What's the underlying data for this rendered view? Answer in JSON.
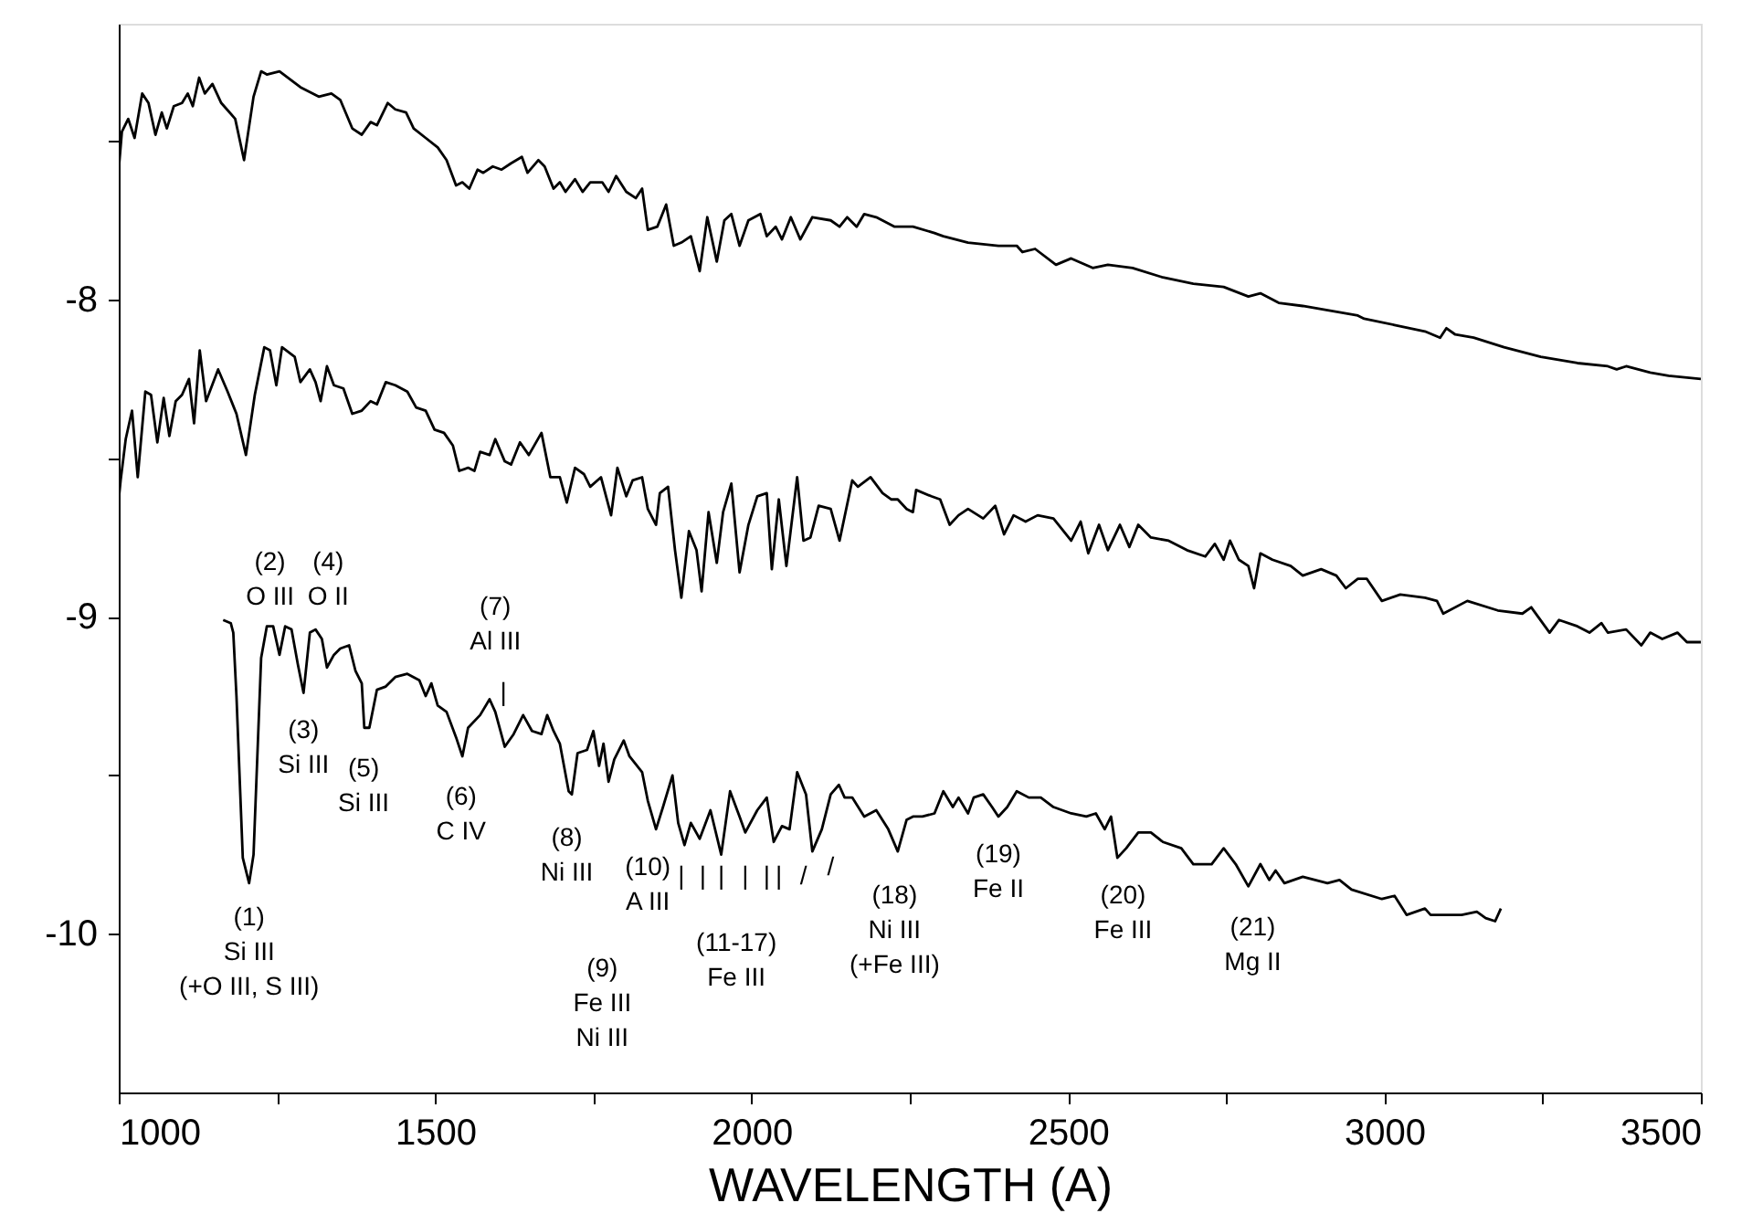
{
  "chart_data": {
    "type": "line",
    "xlabel": "WAVELENGTH (A)",
    "xlim": [
      1000,
      3500
    ],
    "ylim": [
      -10.5,
      -7.13
    ],
    "xticks": [
      1000,
      {
        "value": 1250,
        "label": null
      },
      1500,
      {
        "value": 1750,
        "label": null
      },
      2000,
      {
        "value": 2250,
        "label": null
      },
      2500,
      {
        "value": 2750,
        "label": null
      },
      3000,
      {
        "value": 3250,
        "label": null
      },
      3500
    ],
    "yticks": [
      {
        "value": -7.5,
        "label": null
      },
      -8,
      {
        "value": -8.5,
        "label": null
      },
      -9,
      {
        "value": -9.5,
        "label": null
      },
      -10
    ],
    "grid": false,
    "marker": "none",
    "line_style": "solid",
    "series": [
      {
        "color": "#000000",
        "x": [
          1000,
          1005,
          1015,
          1025,
          1037,
          1047,
          1058,
          1068,
          1076,
          1087,
          1100,
          1109,
          1117,
          1127,
          1136,
          1148,
          1162,
          1184,
          1198,
          1213,
          1225,
          1234,
          1254,
          1287,
          1316,
          1336,
          1350,
          1369,
          1384,
          1398,
          1408,
          1425,
          1437,
          1454,
          1466,
          1485,
          1504,
          1518,
          1533,
          1543,
          1554,
          1567,
          1576,
          1591,
          1605,
          1620,
          1637,
          1646,
          1663,
          1673,
          1687,
          1697,
          1706,
          1721,
          1733,
          1745,
          1764,
          1774,
          1786,
          1802,
          1817,
          1827,
          1836,
          1851,
          1865,
          1877,
          1889,
          1904,
          1918,
          1930,
          1945,
          1957,
          1968,
          1981,
          1995,
          2014,
          2024,
          2038,
          2048,
          2062,
          2077,
          2096,
          2125,
          2139,
          2151,
          2166,
          2178,
          2197,
          2226,
          2255,
          2289,
          2303,
          2342,
          2390,
          2419,
          2428,
          2448,
          2481,
          2505,
          2539,
          2563,
          2602,
          2650,
          2698,
          2746,
          2785,
          2804,
          2833,
          2871,
          2929,
          2958,
          2968,
          3016,
          3064,
          3088,
          3098,
          3112,
          3141,
          3189,
          3247,
          3305,
          3353,
          3367,
          3382,
          3420,
          3449,
          3500
        ],
        "values": [
          -7.59,
          -7.47,
          -7.43,
          -7.49,
          -7.35,
          -7.38,
          -7.48,
          -7.41,
          -7.46,
          -7.39,
          -7.38,
          -7.35,
          -7.39,
          -7.3,
          -7.35,
          -7.32,
          -7.38,
          -7.43,
          -7.56,
          -7.36,
          -7.28,
          -7.29,
          -7.28,
          -7.33,
          -7.36,
          -7.35,
          -7.37,
          -7.46,
          -7.48,
          -7.44,
          -7.45,
          -7.38,
          -7.4,
          -7.41,
          -7.46,
          -7.49,
          -7.52,
          -7.56,
          -7.64,
          -7.63,
          -7.65,
          -7.59,
          -7.6,
          -7.58,
          -7.59,
          -7.57,
          -7.55,
          -7.6,
          -7.56,
          -7.58,
          -7.65,
          -7.63,
          -7.66,
          -7.62,
          -7.66,
          -7.63,
          -7.63,
          -7.66,
          -7.61,
          -7.66,
          -7.68,
          -7.65,
          -7.78,
          -7.77,
          -7.7,
          -7.83,
          -7.82,
          -7.8,
          -7.91,
          -7.74,
          -7.88,
          -7.75,
          -7.73,
          -7.83,
          -7.75,
          -7.73,
          -7.8,
          -7.77,
          -7.81,
          -7.74,
          -7.81,
          -7.74,
          -7.75,
          -7.77,
          -7.74,
          -7.77,
          -7.73,
          -7.74,
          -7.77,
          -7.77,
          -7.79,
          -7.8,
          -7.82,
          -7.83,
          -7.83,
          -7.85,
          -7.84,
          -7.89,
          -7.87,
          -7.9,
          -7.89,
          -7.9,
          -7.93,
          -7.95,
          -7.96,
          -7.99,
          -7.98,
          -8.01,
          -8.02,
          -8.04,
          -8.05,
          -8.06,
          -8.08,
          -8.1,
          -8.12,
          -8.09,
          -8.11,
          -8.12,
          -8.15,
          -8.18,
          -8.2,
          -8.21,
          -8.22,
          -8.21,
          -8.23,
          -8.24,
          -8.25
        ]
      },
      {
        "color": "#000000",
        "x": [
          1000,
          1003,
          1011,
          1021,
          1030,
          1042,
          1051,
          1061,
          1071,
          1080,
          1090,
          1100,
          1111,
          1119,
          1128,
          1138,
          1157,
          1172,
          1186,
          1201,
          1215,
          1230,
          1239,
          1249,
          1258,
          1278,
          1287,
          1302,
          1311,
          1319,
          1329,
          1340,
          1355,
          1369,
          1384,
          1398,
          1408,
          1422,
          1437,
          1456,
          1470,
          1485,
          1499,
          1514,
          1528,
          1538,
          1552,
          1562,
          1571,
          1586,
          1595,
          1610,
          1620,
          1634,
          1648,
          1668,
          1682,
          1697,
          1708,
          1721,
          1735,
          1745,
          1762,
          1778,
          1788,
          1802,
          1812,
          1827,
          1836,
          1849,
          1855,
          1868,
          1879,
          1889,
          1901,
          1913,
          1921,
          1932,
          1945,
          1955,
          1968,
          1981,
          1995,
          2009,
          2024,
          2032,
          2043,
          2055,
          2072,
          2082,
          2093,
          2106,
          2125,
          2139,
          2159,
          2168,
          2188,
          2207,
          2221,
          2231,
          2245,
          2255,
          2260,
          2284,
          2298,
          2313,
          2327,
          2342,
          2366,
          2385,
          2399,
          2414,
          2433,
          2452,
          2477,
          2505,
          2520,
          2532,
          2549,
          2563,
          2582,
          2597,
          2611,
          2631,
          2659,
          2688,
          2717,
          2732,
          2746,
          2756,
          2770,
          2785,
          2794,
          2804,
          2823,
          2852,
          2871,
          2900,
          2924,
          2939,
          2958,
          2972,
          2996,
          3025,
          3064,
          3083,
          3093,
          3131,
          3179,
          3218,
          3232,
          3261,
          3276,
          3305,
          3324,
          3343,
          3353,
          3382,
          3406,
          3420,
          3439,
          3463,
          3478,
          3500
        ],
        "values": [
          -8.63,
          -8.57,
          -8.44,
          -8.35,
          -8.56,
          -8.29,
          -8.3,
          -8.45,
          -8.31,
          -8.43,
          -8.32,
          -8.3,
          -8.25,
          -8.39,
          -8.16,
          -8.32,
          -8.22,
          -8.29,
          -8.36,
          -8.49,
          -8.3,
          -8.15,
          -8.16,
          -8.27,
          -8.15,
          -8.18,
          -8.26,
          -8.22,
          -8.26,
          -8.32,
          -8.21,
          -8.27,
          -8.28,
          -8.36,
          -8.35,
          -8.32,
          -8.33,
          -8.26,
          -8.27,
          -8.29,
          -8.34,
          -8.35,
          -8.41,
          -8.42,
          -8.46,
          -8.54,
          -8.53,
          -8.54,
          -8.48,
          -8.49,
          -8.44,
          -8.51,
          -8.52,
          -8.45,
          -8.49,
          -8.42,
          -8.56,
          -8.56,
          -8.64,
          -8.53,
          -8.55,
          -8.59,
          -8.56,
          -8.68,
          -8.53,
          -8.62,
          -8.57,
          -8.56,
          -8.66,
          -8.71,
          -8.61,
          -8.59,
          -8.79,
          -8.94,
          -8.73,
          -8.79,
          -8.92,
          -8.67,
          -8.83,
          -8.67,
          -8.58,
          -8.86,
          -8.71,
          -8.62,
          -8.61,
          -8.85,
          -8.63,
          -8.84,
          -8.56,
          -8.76,
          -8.75,
          -8.65,
          -8.66,
          -8.76,
          -8.57,
          -8.59,
          -8.56,
          -8.61,
          -8.63,
          -8.63,
          -8.66,
          -8.67,
          -8.6,
          -8.62,
          -8.63,
          -8.71,
          -8.68,
          -8.66,
          -8.69,
          -8.65,
          -8.74,
          -8.68,
          -8.7,
          -8.68,
          -8.69,
          -8.76,
          -8.7,
          -8.8,
          -8.71,
          -8.79,
          -8.71,
          -8.78,
          -8.71,
          -8.75,
          -8.76,
          -8.79,
          -8.81,
          -8.77,
          -8.82,
          -8.76,
          -8.82,
          -8.84,
          -8.91,
          -8.8,
          -8.82,
          -8.84,
          -8.87,
          -8.85,
          -8.87,
          -8.91,
          -8.88,
          -8.88,
          -8.95,
          -8.93,
          -8.94,
          -8.95,
          -8.99,
          -8.95,
          -8.98,
          -8.99,
          -8.97,
          -9.05,
          -9.01,
          -9.03,
          -9.05,
          -9.02,
          -9.05,
          -9.04,
          -9.09,
          -9.05,
          -9.07,
          -9.05,
          -9.08,
          -9.08
        ]
      },
      {
        "color": "#000000",
        "x": [
          1165,
          1177,
          1181,
          1186,
          1196,
          1206,
          1213,
          1225,
          1234,
          1244,
          1254,
          1263,
          1273,
          1283,
          1292,
          1302,
          1311,
          1321,
          1329,
          1340,
          1350,
          1364,
          1374,
          1384,
          1388,
          1396,
          1408,
          1422,
          1437,
          1456,
          1475,
          1485,
          1494,
          1504,
          1518,
          1533,
          1543,
          1552,
          1571,
          1586,
          1595,
          1610,
          1624,
          1639,
          1653,
          1668,
          1677,
          1687,
          1697,
          1711,
          1716,
          1725,
          1740,
          1750,
          1759,
          1766,
          1774,
          1783,
          1798,
          1807,
          1827,
          1836,
          1849,
          1860,
          1875,
          1884,
          1894,
          1904,
          1918,
          1935,
          1952,
          1966,
          1981,
          1990,
          2009,
          2024,
          2035,
          2048,
          2060,
          2072,
          2086,
          2096,
          2111,
          2125,
          2138,
          2147,
          2159,
          2178,
          2197,
          2216,
          2231,
          2245,
          2255,
          2270,
          2289,
          2303,
          2318,
          2327,
          2342,
          2351,
          2366,
          2380,
          2390,
          2404,
          2419,
          2438,
          2457,
          2477,
          2505,
          2529,
          2544,
          2558,
          2568,
          2578,
          2592,
          2611,
          2631,
          2650,
          2679,
          2698,
          2727,
          2746,
          2765,
          2785,
          2804,
          2818,
          2828,
          2842,
          2871,
          2910,
          2929,
          2948,
          2996,
          3016,
          3035,
          3064,
          3073,
          3093,
          3122,
          3146,
          3160,
          3175,
          3184
        ],
        "values": [
          -9.01,
          -9.02,
          -9.05,
          -9.25,
          -9.76,
          -9.84,
          -9.75,
          -9.13,
          -9.03,
          -9.03,
          -9.12,
          -9.03,
          -9.04,
          -9.15,
          -9.24,
          -9.05,
          -9.04,
          -9.07,
          -9.16,
          -9.12,
          -9.1,
          -9.09,
          -9.17,
          -9.21,
          -9.35,
          -9.35,
          -9.23,
          -9.22,
          -9.19,
          -9.18,
          -9.2,
          -9.25,
          -9.21,
          -9.28,
          -9.3,
          -9.38,
          -9.44,
          -9.35,
          -9.31,
          -9.26,
          -9.3,
          -9.41,
          -9.37,
          -9.31,
          -9.36,
          -9.37,
          -9.31,
          -9.36,
          -9.4,
          -9.55,
          -9.56,
          -9.43,
          -9.42,
          -9.36,
          -9.47,
          -9.4,
          -9.52,
          -9.45,
          -9.39,
          -9.44,
          -9.49,
          -9.58,
          -9.67,
          -9.6,
          -9.5,
          -9.65,
          -9.72,
          -9.65,
          -9.7,
          -9.61,
          -9.75,
          -9.55,
          -9.63,
          -9.68,
          -9.61,
          -9.57,
          -9.71,
          -9.66,
          -9.67,
          -9.49,
          -9.56,
          -9.74,
          -9.67,
          -9.56,
          -9.53,
          -9.57,
          -9.57,
          -9.63,
          -9.61,
          -9.67,
          -9.74,
          -9.64,
          -9.63,
          -9.63,
          -9.62,
          -9.55,
          -9.6,
          -9.57,
          -9.62,
          -9.57,
          -9.56,
          -9.6,
          -9.63,
          -9.6,
          -9.55,
          -9.57,
          -9.57,
          -9.6,
          -9.62,
          -9.63,
          -9.62,
          -9.67,
          -9.63,
          -9.76,
          -9.73,
          -9.68,
          -9.68,
          -9.71,
          -9.73,
          -9.78,
          -9.78,
          -9.73,
          -9.78,
          -9.85,
          -9.78,
          -9.83,
          -9.8,
          -9.84,
          -9.82,
          -9.84,
          -9.83,
          -9.86,
          -9.89,
          -9.88,
          -9.94,
          -9.92,
          -9.94,
          -9.94,
          -9.94,
          -9.93,
          -9.95,
          -9.96,
          -9.92
        ]
      }
    ],
    "annotations": [
      "(1)\nSi III\n(+O III, S III)",
      "(2)\nO III",
      "(4)\nO II",
      "(3)\nSi III",
      "(5)\nSi III",
      "(7)\nAl III",
      "|",
      "(6)\nC IV",
      "(8)\nNi III",
      "(9)\nFe III\nNi III",
      "(10)\nA III",
      "|",
      "|",
      "|",
      "|",
      "|",
      "|",
      "/",
      "/",
      "(11-17)\nFe III",
      "(18)\nNi III\n(+Fe III)",
      "(19)\nFe II",
      "(20)\nFe III",
      "(21)\nMg II"
    ]
  }
}
